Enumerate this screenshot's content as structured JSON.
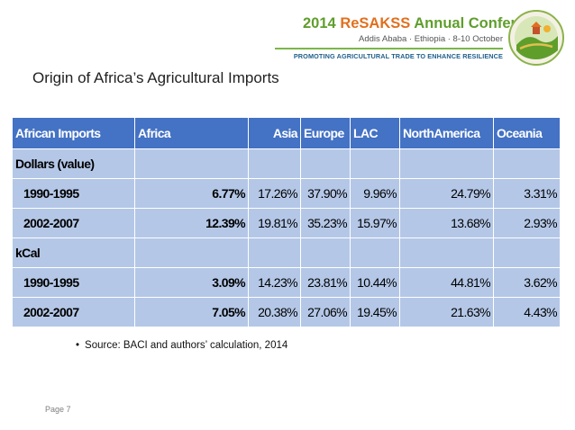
{
  "banner": {
    "title_year": "2014",
    "title_resakss": "ReSAKSS",
    "title_rest": "Annual Conference",
    "subtitle": "Addis Ababa · Ethiopia · 8-10 October",
    "tagline": "PROMOTING AGRICULTURAL TRADE TO ENHANCE RESILIENCE",
    "colors": {
      "green": "#5f9e2b",
      "orange": "#e0701f",
      "navy": "#1f5f8b"
    }
  },
  "slide": {
    "title": "Origin of Africa’s Agricultural Imports",
    "source": "Source: BACI and authors’ calculation, 2014",
    "bullet": "•",
    "page": "Page 7"
  },
  "table": {
    "headers": [
      "African Imports",
      "Africa",
      "Asia",
      "Europe",
      "LAC",
      "NorthAmerica",
      "Oceania"
    ],
    "sections": [
      {
        "label": "Dollars (value)",
        "rows": [
          {
            "period": "1990-1995",
            "values": [
              "6.77%",
              "17.26%",
              "37.90%",
              "9.96%",
              "24.79%",
              "3.31%"
            ]
          },
          {
            "period": "2002-2007",
            "values": [
              "12.39%",
              "19.81%",
              "35.23%",
              "15.97%",
              "13.68%",
              "2.93%"
            ]
          }
        ]
      },
      {
        "label": "kCal",
        "rows": [
          {
            "period": "1990-1995",
            "values": [
              "3.09%",
              "14.23%",
              "23.81%",
              "10.44%",
              "44.81%",
              "3.62%"
            ]
          },
          {
            "period": "2002-2007",
            "values": [
              "7.05%",
              "20.38%",
              "27.06%",
              "19.45%",
              "21.63%",
              "4.43%"
            ]
          }
        ]
      }
    ],
    "colors": {
      "header": "#4472c4",
      "body": "#b4c7e7"
    }
  }
}
